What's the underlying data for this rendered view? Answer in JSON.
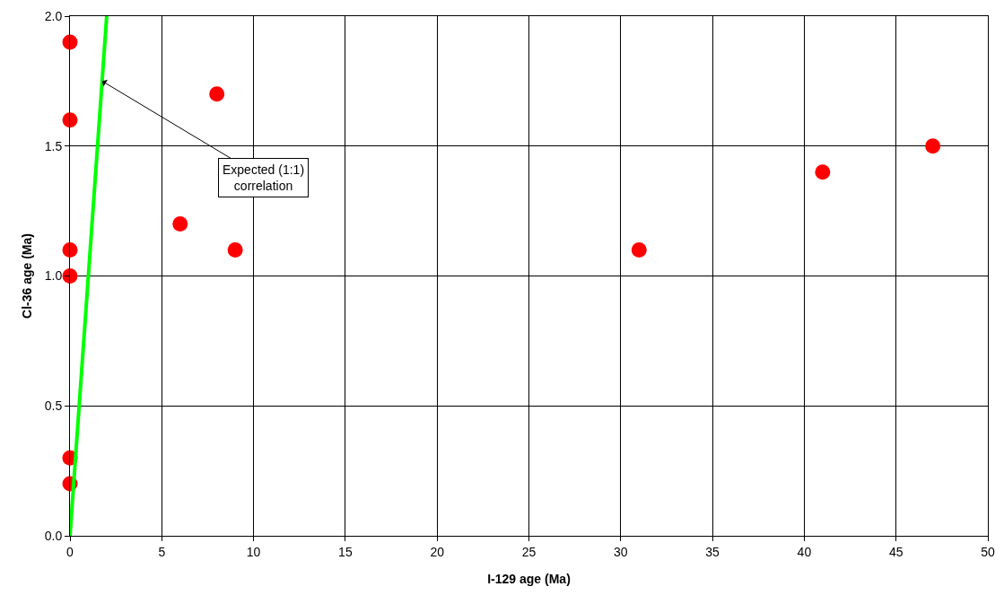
{
  "chart_data": {
    "type": "scatter",
    "xlabel": "I-129 age (Ma)",
    "ylabel": "Cl-36 age (Ma)",
    "series": [
      {
        "color": "#ff0000",
        "marker": "circle",
        "x": [
          0,
          0,
          0,
          0,
          0,
          0,
          6,
          8,
          9,
          31,
          41,
          47
        ],
        "values": [
          1.9,
          1.6,
          1.1,
          1.0,
          0.3,
          0.2,
          1.2,
          1.7,
          1.1,
          1.1,
          1.4,
          1.5
        ]
      },
      {
        "type": "line",
        "color": "#00ff00",
        "marker": "none",
        "line_style": "solid",
        "x": [
          0,
          2
        ],
        "values": [
          0,
          2
        ]
      }
    ],
    "annotations": [
      {
        "text": "Expected (1:1)\ncorrelation",
        "x": 1.75,
        "y": 1.75
      }
    ],
    "xlim": [
      0,
      50
    ],
    "xticks": [
      0,
      5,
      10,
      15,
      20,
      25,
      30,
      35,
      40,
      45,
      50
    ],
    "ylim": [
      0,
      2
    ],
    "yticks": [
      {
        "value": 0,
        "label": "0.0"
      },
      {
        "value": 0.5,
        "label": "0.5"
      },
      {
        "value": 1,
        "label": "1.0"
      },
      {
        "value": 1.5,
        "label": "1.5"
      },
      {
        "value": 2,
        "label": "2.0"
      }
    ],
    "grid": true,
    "legend": false
  }
}
